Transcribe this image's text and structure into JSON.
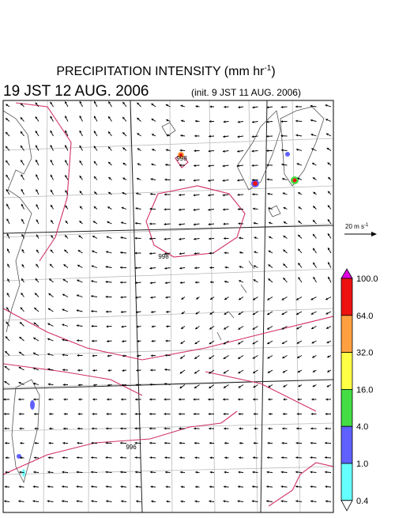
{
  "header": {
    "title": "PRECIPITATION INTENSITY (mm hr",
    "title_superscript": "-1",
    "title_suffix": ")",
    "valid_time": "19 JST 12 AUG. 2006",
    "init_time": "(init. 9 JST 11 AUG. 2006)"
  },
  "reference_vector": {
    "label": "20 m s",
    "superscript": "-1"
  },
  "contour_labels": [
    "998",
    "998",
    "996"
  ],
  "colorbar": {
    "levels": [
      {
        "value": 100,
        "label": "100.0"
      },
      {
        "value": 64,
        "label": "64.0"
      },
      {
        "value": 32,
        "label": "32.0"
      },
      {
        "value": 16,
        "label": "16.0"
      },
      {
        "value": 4,
        "label": "4.0"
      },
      {
        "value": 1,
        "label": "1.0"
      },
      0.4
    ],
    "colors": [
      "#e000e0",
      "#ee1111",
      "#ffa040",
      "#ffff44",
      "#44dd44",
      "#6060ff",
      "#66ffff",
      "#ffffff"
    ]
  }
}
